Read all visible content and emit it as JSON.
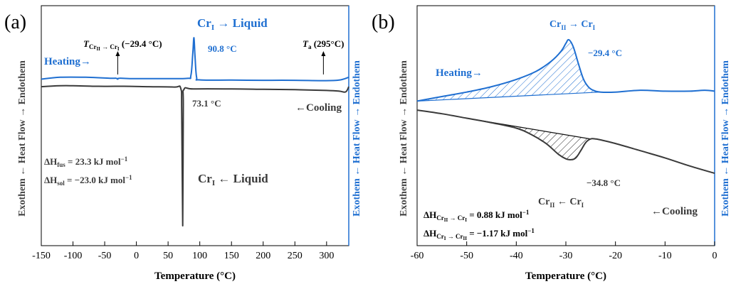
{
  "chart_data": [
    {
      "panel": "(a)",
      "type": "line",
      "xlabel": "Temperature (°C)",
      "ylabel_left": "Exothem ← Heat Flow → Endothem",
      "ylabel_right": "Exothem ← Heat Flow → Endothem",
      "xlim": [
        -150,
        335
      ],
      "xticks": [
        -150,
        -100,
        -50,
        0,
        50,
        100,
        150,
        200,
        250,
        300
      ],
      "grid": false,
      "series": [
        {
          "name": "Heating",
          "color": "#1f6fd1",
          "x": [
            -150,
            -120,
            -80,
            -40,
            -32,
            -29.4,
            -27,
            -10,
            40,
            80,
            86,
            89,
            90.8,
            92.5,
            95,
            100,
            150,
            200,
            250,
            295,
            320,
            335
          ],
          "y": [
            0.78,
            0.79,
            0.79,
            0.785,
            0.785,
            0.78,
            0.785,
            0.783,
            0.783,
            0.784,
            0.8,
            0.92,
            1.0,
            0.9,
            0.79,
            0.776,
            0.775,
            0.774,
            0.774,
            0.772,
            0.775,
            0.79
          ]
        },
        {
          "name": "Cooling",
          "color": "#3a3a3a",
          "x": [
            -150,
            -120,
            -100,
            -60,
            -20,
            20,
            60,
            70,
            71.5,
            73.1,
            74,
            75,
            90,
            150,
            200,
            250,
            300,
            320,
            330,
            335
          ],
          "y": [
            0.74,
            0.745,
            0.745,
            0.742,
            0.742,
            0.74,
            0.738,
            0.73,
            0.6,
            0.0,
            0.62,
            0.725,
            0.728,
            0.728,
            0.726,
            0.724,
            0.72,
            0.716,
            0.712,
            0.74
          ]
        }
      ],
      "annotations": {
        "heating_label": "Heating→",
        "cooling_label": "←Cooling",
        "melt_title": "Cr",
        "melt_sub": "I",
        "melt_rest": " → Liquid",
        "melt_temp": "90.8 °C",
        "cryst_temp": "73.1 °C",
        "transition_T": "T",
        "transition_sub1": "Cr",
        "transition_sub2": "II",
        "transition_arrow": " → ",
        "transition_sub3": "Cr",
        "transition_sub4": "I",
        "transition_val": " (−29.4 °C)",
        "ta_T": "T",
        "ta_sub": "a",
        "ta_val": " (295°C)",
        "dh_fus_prefix": "ΔH",
        "dh_fus_sub": "fus",
        "dh_fus_val": " = 23.3 kJ mol",
        "dh_sol_prefix": "ΔH",
        "dh_sol_sub": "sol",
        "dh_sol_val": " = −23.0 kJ mol",
        "sup": "−1",
        "cr_liquid_1": "Cr",
        "cr_liquid_sub": "I",
        "cr_liquid_rest": " ← Liquid"
      }
    },
    {
      "panel": "(b)",
      "type": "line",
      "xlabel": "Temperature (°C)",
      "ylabel_left": "Exothem ← Heat Flow → Endothem",
      "ylabel_right": "Exothem ← Heat Flow → Endothem",
      "xlim": [
        -60,
        0
      ],
      "xticks": [
        -60,
        -50,
        -40,
        -30,
        -20,
        -10,
        0
      ],
      "grid": false,
      "series": [
        {
          "name": "Heating",
          "color": "#1f6fd1",
          "x": [
            -60,
            -55,
            -50,
            -45,
            -40,
            -36,
            -33,
            -31,
            -30,
            -29.4,
            -28.5,
            -27.5,
            -26.5,
            -25.5,
            -24.5,
            -23,
            -20,
            -15,
            -10,
            -5,
            -2,
            0
          ],
          "y": [
            0.0,
            0.05,
            0.1,
            0.16,
            0.24,
            0.33,
            0.44,
            0.55,
            0.64,
            0.68,
            0.6,
            0.42,
            0.25,
            0.16,
            0.12,
            0.1,
            0.1,
            0.12,
            0.11,
            0.11,
            0.12,
            0.11
          ]
        },
        {
          "name": "Cooling",
          "color": "#3a3a3a",
          "x": [
            -60,
            -55,
            -50,
            -45,
            -40,
            -37,
            -34,
            -31.5,
            -30,
            -29,
            -28,
            -27,
            -26,
            -25,
            -24,
            -23,
            -20,
            -15,
            -10,
            -5,
            0
          ],
          "y": [
            -0.1,
            -0.14,
            -0.19,
            -0.24,
            -0.3,
            -0.37,
            -0.47,
            -0.59,
            -0.64,
            -0.65,
            -0.63,
            -0.55,
            -0.46,
            -0.42,
            -0.42,
            -0.43,
            -0.47,
            -0.55,
            -0.63,
            -0.72,
            -0.8
          ]
        }
      ],
      "annotations": {
        "heating_label": "Heating→",
        "cooling_label": "←Cooling",
        "heat_title_1": "Cr",
        "heat_title_sub1": "II",
        "heat_title_arrow": " → ",
        "heat_title_2": "Cr",
        "heat_title_sub2": "I",
        "heat_temp": "−29.4 °C",
        "cool_title_1": "Cr",
        "cool_title_sub1": "II",
        "cool_title_arrow": " ← ",
        "cool_title_2": "Cr",
        "cool_title_sub2": "I",
        "cool_temp": "−34.8 °C",
        "dh1_prefix": "ΔH",
        "dh1_sub": "Cr",
        "dh1_sub_sub": "II",
        "dh1_arrow": " → ",
        "dh1_sub2": "Cr",
        "dh1_sub2_sub": "I",
        "dh1_val": " = 0.88 kJ mol",
        "dh2_prefix": "ΔH",
        "dh2_sub": "Cr",
        "dh2_sub_sub": "I",
        "dh2_arrow": " → ",
        "dh2_sub2": "Cr",
        "dh2_sub2_sub": "II",
        "dh2_val": " = −1.17 kJ mol",
        "sup": "−1"
      }
    }
  ]
}
